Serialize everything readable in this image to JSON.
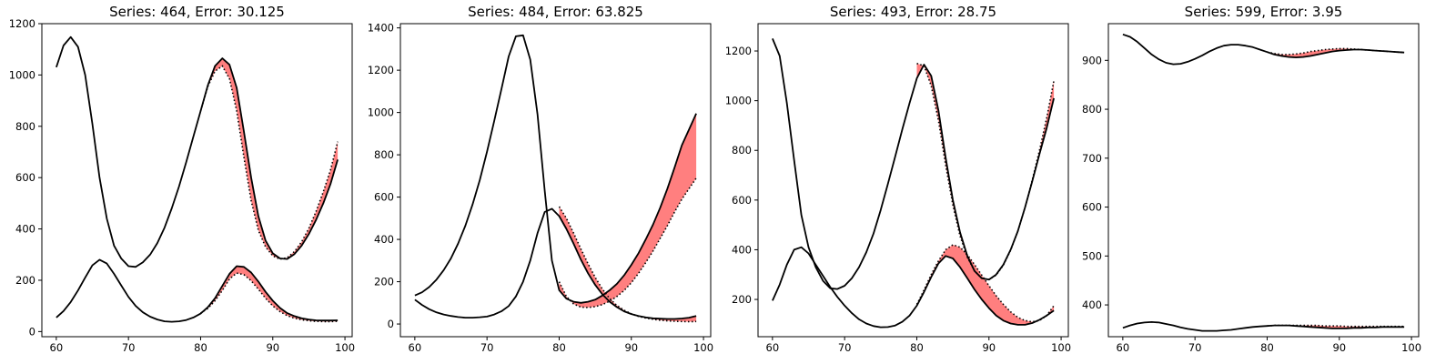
{
  "colors": {
    "fill": "#ff7f7f",
    "line": "#000000",
    "background": "#ffffff"
  },
  "chart_data": [
    {
      "type": "line",
      "title": "Series: 464, Error: 30.125",
      "xlim": [
        58,
        101
      ],
      "ylim": [
        -20,
        1200
      ],
      "xticks": [
        60,
        70,
        80,
        90,
        100
      ],
      "yticks": [
        0,
        200,
        400,
        600,
        800,
        1000,
        1200
      ],
      "lines": [
        {
          "style": "solid",
          "x": [
            60,
            61,
            62,
            63,
            64,
            65,
            66,
            67,
            68,
            69,
            70,
            71,
            72,
            73,
            74,
            75,
            76,
            77,
            78,
            79,
            80,
            81,
            82,
            83,
            84,
            85,
            86,
            87,
            88,
            89,
            90,
            91,
            92,
            93,
            94,
            95,
            96,
            97,
            98,
            99
          ],
          "y": [
            1030,
            1115,
            1148,
            1110,
            1000,
            810,
            600,
            440,
            335,
            285,
            255,
            252,
            270,
            300,
            345,
            405,
            480,
            565,
            660,
            760,
            860,
            960,
            1035,
            1065,
            1040,
            950,
            780,
            600,
            450,
            355,
            305,
            285,
            283,
            302,
            335,
            380,
            435,
            500,
            575,
            670
          ]
        },
        {
          "style": "solid",
          "x": [
            60,
            61,
            62,
            63,
            64,
            65,
            66,
            67,
            68,
            69,
            70,
            71,
            72,
            73,
            74,
            75,
            76,
            77,
            78,
            79,
            80,
            81,
            82,
            83,
            84,
            85,
            86,
            87,
            88,
            89,
            90,
            91,
            92,
            93,
            94,
            95,
            96,
            97,
            98,
            99
          ],
          "y": [
            55,
            80,
            115,
            160,
            210,
            258,
            280,
            265,
            225,
            180,
            135,
            100,
            75,
            58,
            47,
            40,
            38,
            40,
            45,
            55,
            70,
            95,
            130,
            178,
            225,
            255,
            252,
            230,
            195,
            155,
            120,
            92,
            72,
            60,
            52,
            47,
            44,
            43,
            43,
            44
          ]
        }
      ],
      "predictions": [
        {
          "x": [
            80,
            81,
            82,
            83,
            84,
            85,
            86,
            87,
            88,
            89,
            90,
            91,
            92,
            93,
            94,
            95,
            96,
            97,
            98,
            99
          ],
          "y": [
            860,
            955,
            1015,
            1035,
            985,
            860,
            680,
            510,
            395,
            330,
            295,
            282,
            288,
            312,
            350,
            402,
            468,
            545,
            630,
            740
          ]
        },
        {
          "x": [
            80,
            81,
            82,
            83,
            84,
            85,
            86,
            87,
            88,
            89,
            90,
            91,
            92,
            93,
            94,
            95,
            96,
            97,
            98,
            99
          ],
          "y": [
            72,
            90,
            120,
            160,
            205,
            228,
            222,
            198,
            165,
            130,
            100,
            78,
            62,
            52,
            46,
            42,
            40,
            39,
            39,
            40
          ]
        }
      ]
    },
    {
      "type": "line",
      "title": "Series: 484, Error: 63.825",
      "xlim": [
        58,
        101
      ],
      "ylim": [
        -60,
        1420
      ],
      "xticks": [
        60,
        70,
        80,
        90,
        100
      ],
      "yticks": [
        0,
        200,
        400,
        600,
        800,
        1000,
        1200,
        1400
      ],
      "lines": [
        {
          "style": "solid",
          "x": [
            60,
            61,
            62,
            63,
            64,
            65,
            66,
            67,
            68,
            69,
            70,
            71,
            72,
            73,
            74,
            75,
            76,
            77,
            78,
            79,
            80,
            81,
            82,
            83,
            84,
            85,
            86,
            87,
            88,
            89,
            90,
            91,
            92,
            93,
            94,
            95,
            96,
            97,
            98,
            99
          ],
          "y": [
            135,
            150,
            175,
            210,
            255,
            310,
            380,
            465,
            565,
            680,
            815,
            960,
            1110,
            1265,
            1360,
            1365,
            1250,
            990,
            630,
            300,
            160,
            120,
            105,
            100,
            105,
            115,
            135,
            160,
            190,
            230,
            280,
            335,
            400,
            470,
            550,
            640,
            740,
            845,
            920,
            995
          ]
        },
        {
          "style": "solid",
          "x": [
            60,
            61,
            62,
            63,
            64,
            65,
            66,
            67,
            68,
            69,
            70,
            71,
            72,
            73,
            74,
            75,
            76,
            77,
            78,
            79,
            80,
            81,
            82,
            83,
            84,
            85,
            86,
            87,
            88,
            89,
            90,
            91,
            92,
            93,
            94,
            95,
            96,
            97,
            98,
            99
          ],
          "y": [
            115,
            90,
            70,
            55,
            45,
            38,
            33,
            30,
            30,
            32,
            35,
            45,
            60,
            85,
            130,
            200,
            300,
            430,
            530,
            545,
            510,
            450,
            380,
            305,
            240,
            185,
            140,
            105,
            80,
            60,
            47,
            38,
            31,
            27,
            25,
            24,
            24,
            26,
            30,
            38
          ]
        }
      ],
      "predictions": [
        {
          "x": [
            80,
            81,
            82,
            83,
            84,
            85,
            86,
            87,
            88,
            89,
            90,
            91,
            92,
            93,
            94,
            95,
            96,
            97,
            98,
            99
          ],
          "y": [
            200,
            130,
            95,
            80,
            78,
            82,
            92,
            108,
            130,
            158,
            195,
            240,
            290,
            345,
            405,
            465,
            530,
            590,
            640,
            690
          ]
        },
        {
          "x": [
            80,
            81,
            82,
            83,
            84,
            85,
            86,
            87,
            88,
            89,
            90,
            91,
            92,
            93,
            94,
            95,
            96,
            97,
            98,
            99
          ],
          "y": [
            555,
            500,
            430,
            355,
            285,
            220,
            165,
            120,
            88,
            65,
            48,
            36,
            28,
            22,
            18,
            15,
            13,
            12,
            11,
            12
          ]
        }
      ]
    },
    {
      "type": "line",
      "title": "Series: 493, Error: 28.75",
      "xlim": [
        58,
        101
      ],
      "ylim": [
        50,
        1310
      ],
      "xticks": [
        60,
        70,
        80,
        90,
        100
      ],
      "yticks": [
        200,
        400,
        600,
        800,
        1000,
        1200
      ],
      "lines": [
        {
          "style": "solid",
          "x": [
            60,
            61,
            62,
            63,
            64,
            65,
            66,
            67,
            68,
            69,
            70,
            71,
            72,
            73,
            74,
            75,
            76,
            77,
            78,
            79,
            80,
            81,
            82,
            83,
            84,
            85,
            86,
            87,
            88,
            89,
            90,
            91,
            92,
            93,
            94,
            95,
            96,
            97,
            98,
            99
          ],
          "y": [
            1250,
            1180,
            990,
            760,
            540,
            410,
            330,
            275,
            245,
            242,
            255,
            285,
            330,
            390,
            465,
            560,
            665,
            775,
            885,
            990,
            1090,
            1145,
            1100,
            960,
            770,
            600,
            470,
            375,
            315,
            285,
            280,
            300,
            340,
            400,
            475,
            570,
            675,
            785,
            890,
            1010
          ]
        },
        {
          "style": "solid",
          "x": [
            60,
            61,
            62,
            63,
            64,
            65,
            66,
            67,
            68,
            69,
            70,
            71,
            72,
            73,
            74,
            75,
            76,
            77,
            78,
            79,
            80,
            81,
            82,
            83,
            84,
            85,
            86,
            87,
            88,
            89,
            90,
            91,
            92,
            93,
            94,
            95,
            96,
            97,
            98,
            99
          ],
          "y": [
            195,
            260,
            340,
            400,
            410,
            385,
            340,
            295,
            250,
            210,
            175,
            145,
            120,
            103,
            93,
            88,
            89,
            95,
            110,
            135,
            175,
            230,
            290,
            345,
            375,
            365,
            330,
            285,
            240,
            200,
            165,
            135,
            115,
            103,
            98,
            98,
            105,
            118,
            135,
            155
          ]
        }
      ],
      "predictions": [
        {
          "x": [
            80,
            81,
            82,
            83,
            84,
            85,
            86,
            87,
            88,
            89,
            90,
            91,
            92,
            93,
            94,
            95,
            96,
            97,
            98,
            99
          ],
          "y": [
            1150,
            1140,
            1060,
            920,
            740,
            580,
            455,
            370,
            315,
            285,
            280,
            298,
            338,
            398,
            475,
            570,
            680,
            800,
            930,
            1080
          ]
        },
        {
          "x": [
            80,
            81,
            82,
            83,
            84,
            85,
            86,
            87,
            88,
            89,
            90,
            91,
            92,
            93,
            94,
            95,
            96,
            97,
            98,
            99
          ],
          "y": [
            180,
            238,
            300,
            355,
            400,
            420,
            410,
            380,
            340,
            298,
            255,
            215,
            180,
            150,
            128,
            115,
            110,
            115,
            135,
            175
          ]
        }
      ]
    },
    {
      "type": "line",
      "title": "Series: 599, Error: 3.95",
      "xlim": [
        58,
        101
      ],
      "ylim": [
        335,
        975
      ],
      "xticks": [
        60,
        70,
        80,
        90,
        100
      ],
      "yticks": [
        400,
        500,
        600,
        700,
        800,
        900
      ],
      "lines": [
        {
          "style": "solid",
          "x": [
            60,
            61,
            62,
            63,
            64,
            65,
            66,
            67,
            68,
            69,
            70,
            71,
            72,
            73,
            74,
            75,
            76,
            77,
            78,
            79,
            80,
            81,
            82,
            83,
            84,
            85,
            86,
            87,
            88,
            89,
            90,
            91,
            92,
            93,
            94,
            95,
            96,
            97,
            98,
            99
          ],
          "y": [
            953,
            948,
            938,
            925,
            912,
            902,
            895,
            892,
            893,
            897,
            903,
            910,
            918,
            925,
            930,
            932,
            932,
            930,
            927,
            922,
            917,
            912,
            909,
            907,
            906,
            907,
            909,
            912,
            915,
            918,
            920,
            921,
            922,
            922,
            921,
            920,
            919,
            918,
            917,
            916
          ]
        },
        {
          "style": "solid",
          "x": [
            60,
            61,
            62,
            63,
            64,
            65,
            66,
            67,
            68,
            69,
            70,
            71,
            72,
            73,
            74,
            75,
            76,
            77,
            78,
            79,
            80,
            81,
            82,
            83,
            84,
            85,
            86,
            87,
            88,
            89,
            90,
            91,
            92,
            93,
            94,
            95,
            96,
            97,
            98,
            99
          ],
          "y": [
            353,
            358,
            362,
            364,
            365,
            364,
            361,
            358,
            354,
            351,
            349,
            347,
            347,
            347,
            348,
            349,
            351,
            353,
            355,
            356,
            357,
            358,
            358,
            358,
            357,
            356,
            355,
            354,
            353,
            352,
            352,
            352,
            353,
            353,
            354,
            354,
            355,
            355,
            355,
            355
          ]
        }
      ],
      "predictions": [
        {
          "x": [
            80,
            81,
            82,
            83,
            84,
            85,
            86,
            87,
            88,
            89,
            90,
            91,
            92,
            93,
            94,
            95,
            96,
            97,
            98,
            99
          ],
          "y": [
            917,
            914,
            912,
            912,
            913,
            915,
            918,
            920,
            922,
            923,
            924,
            924,
            923,
            922,
            921,
            920,
            919,
            918,
            917,
            916
          ]
        },
        {
          "x": [
            80,
            81,
            82,
            83,
            84,
            85,
            86,
            87,
            88,
            89,
            90,
            91,
            92,
            93,
            94,
            95,
            96,
            97,
            98,
            99
          ],
          "y": [
            357,
            358,
            358,
            358,
            358,
            358,
            358,
            358,
            357,
            357,
            357,
            356,
            356,
            356,
            356,
            356,
            356,
            356,
            356,
            356
          ]
        }
      ]
    }
  ]
}
